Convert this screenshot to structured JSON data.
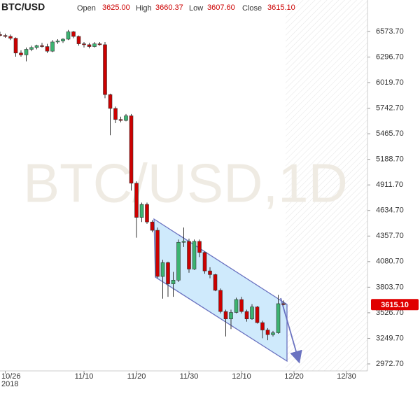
{
  "chart_data": {
    "type": "candlestick",
    "title": "BTC/USD",
    "watermark": "BTC/USD,1D",
    "header": {
      "open_label": "Open",
      "open": "3625.00",
      "high_label": "High",
      "high": "3660.37",
      "low_label": "Low",
      "low": "3607.60",
      "close_label": "Close",
      "close": "3615.10"
    },
    "last_price_label": "3615.10",
    "up_color": "#3cb371",
    "down_color": "#cc0000",
    "x": [
      "2018-10-25",
      "2018-10-26",
      "2018-10-27",
      "2018-10-28",
      "2018-10-29",
      "2018-10-30",
      "2018-10-31",
      "2018-11-01",
      "2018-11-02",
      "2018-11-03",
      "2018-11-04",
      "2018-11-05",
      "2018-11-06",
      "2018-11-07",
      "2018-11-08",
      "2018-11-09",
      "2018-11-10",
      "2018-11-11",
      "2018-11-12",
      "2018-11-13",
      "2018-11-14",
      "2018-11-15",
      "2018-11-16",
      "2018-11-17",
      "2018-11-18",
      "2018-11-19",
      "2018-11-20",
      "2018-11-21",
      "2018-11-22",
      "2018-11-23",
      "2018-11-24",
      "2018-11-25",
      "2018-11-26",
      "2018-11-27",
      "2018-11-28",
      "2018-11-29",
      "2018-11-30",
      "2018-12-01",
      "2018-12-02",
      "2018-12-03",
      "2018-12-04",
      "2018-12-05",
      "2018-12-06",
      "2018-12-07",
      "2018-12-08",
      "2018-12-09",
      "2018-12-10",
      "2018-12-11",
      "2018-12-12",
      "2018-12-13",
      "2018-12-14",
      "2018-12-15",
      "2018-12-16",
      "2018-12-17",
      "2018-12-18"
    ],
    "open": [
      6540,
      6530,
      6520,
      6500,
      6340,
      6320,
      6380,
      6400,
      6420,
      6410,
      6360,
      6460,
      6470,
      6490,
      6570,
      6520,
      6440,
      6430,
      6410,
      6440,
      6430,
      5890,
      5740,
      5620,
      5610,
      5660,
      4930,
      4560,
      4700,
      4510,
      4420,
      3920,
      4070,
      3840,
      3880,
      4290,
      4300,
      4000,
      4300,
      4180,
      3980,
      3940,
      3770,
      3540,
      3460,
      3530,
      3670,
      3540,
      3460,
      3590,
      3420,
      3340,
      3290,
      3310,
      3625
    ],
    "high": [
      6570,
      6550,
      6540,
      6510,
      6370,
      6400,
      6420,
      6430,
      6450,
      6440,
      6480,
      6490,
      6500,
      6590,
      6580,
      6530,
      6460,
      6450,
      6460,
      6460,
      6460,
      5900,
      5760,
      5650,
      5680,
      5680,
      4950,
      4720,
      4720,
      4530,
      4450,
      4100,
      4080,
      3970,
      4320,
      4450,
      4330,
      4320,
      4320,
      4190,
      4020,
      3950,
      3790,
      3560,
      3560,
      3690,
      3700,
      3560,
      3620,
      3600,
      3440,
      3360,
      3330,
      3720,
      3660.37
    ],
    "low": [
      6520,
      6505,
      6480,
      6300,
      6300,
      6250,
      6360,
      6380,
      6400,
      6340,
      6350,
      6440,
      6450,
      6480,
      6500,
      6420,
      6400,
      6390,
      6400,
      6420,
      5850,
      5450,
      5580,
      5590,
      5600,
      4850,
      4340,
      4510,
      4490,
      4400,
      3900,
      3680,
      3700,
      3700,
      3860,
      4240,
      3960,
      3990,
      4130,
      3950,
      3900,
      3760,
      3520,
      3270,
      3350,
      3520,
      3520,
      3430,
      3450,
      3410,
      3250,
      3230,
      3270,
      3300,
      3607.6
    ],
    "close": [
      6530,
      6520,
      6500,
      6340,
      6320,
      6380,
      6400,
      6420,
      6410,
      6360,
      6460,
      6470,
      6490,
      6570,
      6520,
      6440,
      6430,
      6410,
      6440,
      6430,
      5890,
      5740,
      5620,
      5610,
      5660,
      4930,
      4560,
      4700,
      4510,
      4420,
      3920,
      4070,
      3840,
      3880,
      4290,
      4300,
      4000,
      4300,
      4180,
      3980,
      3940,
      3770,
      3540,
      3460,
      3530,
      3670,
      3540,
      3460,
      3590,
      3420,
      3340,
      3290,
      3310,
      3625,
      3615.1
    ],
    "xlim": [
      "2018-10-25",
      "2019-01-03"
    ],
    "xticks": [
      {
        "value": "2018-10-26",
        "label": "10/26"
      },
      {
        "value": "2018-11-10",
        "label": "11/10"
      },
      {
        "value": "2018-11-20",
        "label": "11/20"
      },
      {
        "value": "2018-11-30",
        "label": "11/30"
      },
      {
        "value": "2018-12-10",
        "label": "12/10"
      },
      {
        "value": "2018-12-20",
        "label": "12/20"
      },
      {
        "value": "2018-12-30",
        "label": "12/30"
      }
    ],
    "x_year_label": "2018",
    "ylim": [
      2897,
      6687
    ],
    "yticks": [
      {
        "value": 2972.7,
        "label": "2972.70"
      },
      {
        "value": 3249.7,
        "label": "3249.70"
      },
      {
        "value": 3526.7,
        "label": "3526.70"
      },
      {
        "value": 3803.7,
        "label": "3803.70"
      },
      {
        "value": 4080.7,
        "label": "4080.70"
      },
      {
        "value": 4357.7,
        "label": "4357.70"
      },
      {
        "value": 4634.7,
        "label": "4634.70"
      },
      {
        "value": 4911.7,
        "label": "4911.70"
      },
      {
        "value": 5188.7,
        "label": "5188.70"
      },
      {
        "value": 5465.7,
        "label": "5465.70"
      },
      {
        "value": 5742.7,
        "label": "5742.70"
      },
      {
        "value": 6019.7,
        "label": "6019.70"
      },
      {
        "value": 6296.7,
        "label": "6296.70"
      },
      {
        "value": 6573.7,
        "label": "6573.70"
      }
    ],
    "grid": false
  }
}
